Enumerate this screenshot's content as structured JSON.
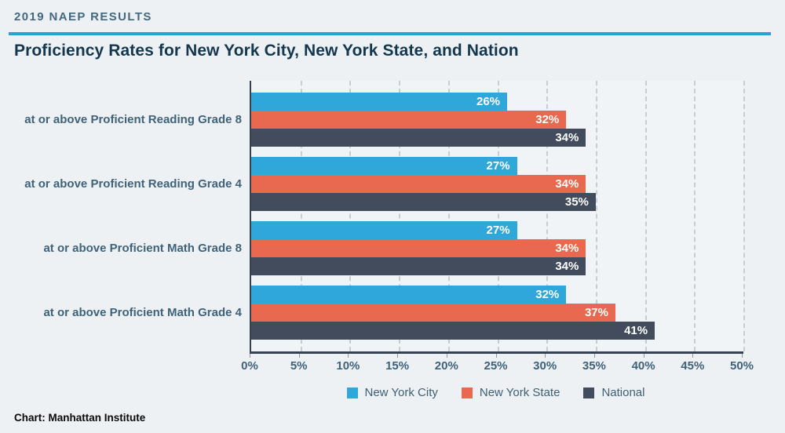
{
  "page": {
    "kicker": "2019 NAEP RESULTS",
    "title": "Proficiency Rates for New York City, New York State, and Nation",
    "credit": "Chart: Manhattan Institute"
  },
  "colors": {
    "background": "#edf1f4",
    "plot_background": "#f1f4f7",
    "accent_rule": "#2ba0d8",
    "axis": "#37414f",
    "gridline": "#c7cdd4",
    "kicker_text": "#44687e",
    "title_text": "#14374e",
    "label_text": "#3f6278",
    "bar_value_text": "#ffffff",
    "credit_text": "#0a0a0a"
  },
  "chart_data": {
    "type": "bar",
    "orientation": "horizontal",
    "title": "Proficiency Rates for New York City, New York State, and Nation",
    "categories": [
      "at or above Proficient Reading Grade 8",
      "at or above Proficient Reading Grade 4",
      "at or above Proficient Math Grade 8",
      "at or above Proficient Math Grade 4"
    ],
    "series": [
      {
        "name": "New York City",
        "color": "#2fa7da",
        "values": [
          26,
          27,
          27,
          32
        ]
      },
      {
        "name": "New York State",
        "color": "#e8694f",
        "values": [
          32,
          34,
          34,
          37
        ]
      },
      {
        "name": "National",
        "color": "#424c5c",
        "values": [
          34,
          35,
          34,
          41
        ]
      }
    ],
    "value_suffix": "%",
    "xlim": [
      0,
      50
    ],
    "xticks": [
      0,
      5,
      10,
      15,
      20,
      25,
      30,
      35,
      40,
      45,
      50
    ],
    "xtick_labels": [
      "0%",
      "5%",
      "10%",
      "15%",
      "20%",
      "25%",
      "30%",
      "35%",
      "40%",
      "45%",
      "50%"
    ],
    "grid": "vertical-dashed",
    "legend_position": "bottom"
  }
}
